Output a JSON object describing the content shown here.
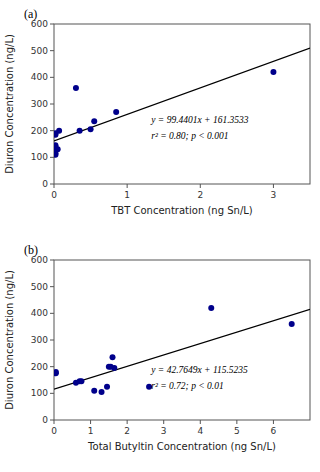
{
  "chart_data": [
    {
      "type": "scatter",
      "title": "(a)",
      "x_label": "TBT Concentration (ng Sn/L)",
      "y_label": "Diuron Concentration (ng/L)",
      "series": [
        {
          "type": "scatter",
          "color": "#00008B",
          "x": [
            0.02,
            0.02,
            0.02,
            0.02,
            0.02,
            0.02,
            0.02,
            0.05,
            0.07,
            0.3,
            0.35,
            0.5,
            0.55,
            0.85,
            3.0
          ],
          "values": [
            190,
            185,
            145,
            140,
            130,
            115,
            110,
            130,
            200,
            360,
            200,
            205,
            235,
            270,
            420
          ]
        },
        {
          "type": "line",
          "color": "#000000",
          "x": [
            0,
            3.5
          ],
          "values": [
            161.3533,
            509.39365
          ]
        }
      ],
      "annotations": [
        "y = 99.4401x + 161.3533",
        "r² = 0.80; p < 0.001"
      ],
      "xlim": [
        0,
        3.5
      ],
      "ylim": [
        0,
        600
      ],
      "xticks": [
        0,
        1,
        2,
        3
      ],
      "yticks": [
        0,
        100,
        200,
        300,
        400,
        500,
        600
      ],
      "grid": false
    },
    {
      "type": "scatter",
      "title": "(b)",
      "x_label": "Total Butyltin Concentration (ng Sn/L)",
      "y_label": "Diuron Concentration (ng/L)",
      "series": [
        {
          "type": "scatter",
          "color": "#00008B",
          "x": [
            0.05,
            0.05,
            0.6,
            0.7,
            0.75,
            1.1,
            1.3,
            1.45,
            1.5,
            1.55,
            1.6,
            1.65,
            2.6,
            4.3,
            6.5
          ],
          "values": [
            175,
            180,
            140,
            145,
            145,
            110,
            105,
            125,
            200,
            200,
            235,
            195,
            125,
            420,
            360
          ]
        },
        {
          "type": "line",
          "color": "#000000",
          "x": [
            0,
            7
          ],
          "values": [
            115.5235,
            414.8778
          ]
        }
      ],
      "annotations": [
        "y = 42.7649x + 115.5235",
        "r² = 0.72; p < 0.01"
      ],
      "xlim": [
        0,
        7
      ],
      "ylim": [
        0,
        600
      ],
      "xticks": [
        0,
        1,
        2,
        3,
        4,
        5,
        6
      ],
      "yticks": [
        0,
        100,
        200,
        300,
        400,
        500,
        600
      ],
      "grid": false
    }
  ]
}
